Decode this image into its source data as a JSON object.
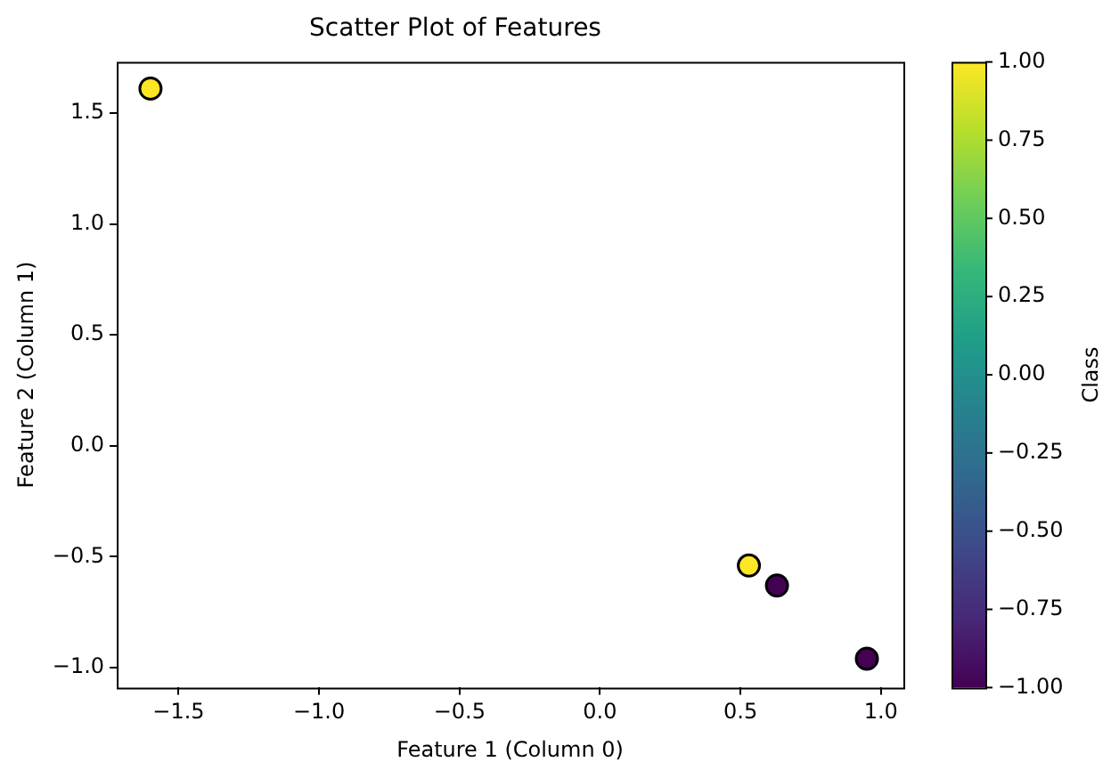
{
  "chart_data": {
    "type": "scatter",
    "title": "Scatter Plot of Features",
    "xlabel": "Feature 1 (Column 0)",
    "ylabel": "Feature 2 (Column 1)",
    "clabel": "Class",
    "x": [
      -1.6,
      0.53,
      0.63,
      0.95
    ],
    "values": [
      1.61,
      -0.54,
      -0.63,
      -0.96
    ],
    "cvalues": [
      1,
      1,
      -1,
      -1
    ],
    "xlim": [
      -1.72,
      1.08
    ],
    "xticks": [
      {
        "value": -1.5,
        "label": "−1.5"
      },
      {
        "value": -1.0,
        "label": "−1.0"
      },
      {
        "value": -0.5,
        "label": "−0.5"
      },
      {
        "value": 0.0,
        "label": "0.0"
      },
      {
        "value": 0.5,
        "label": "0.5"
      },
      {
        "value": 1.0,
        "label": "1.0"
      }
    ],
    "ylim": [
      -1.09,
      1.73
    ],
    "yticks": [
      {
        "value": -1.0,
        "label": "−1.0"
      },
      {
        "value": -0.5,
        "label": "−0.5"
      },
      {
        "value": 0.0,
        "label": "0.0"
      },
      {
        "value": 0.5,
        "label": "0.5"
      },
      {
        "value": 1.0,
        "label": "1.0"
      },
      {
        "value": 1.5,
        "label": "1.5"
      }
    ],
    "clim": [
      -1,
      1
    ],
    "cticks": [
      {
        "value": -1,
        "label": "−1.00"
      },
      {
        "value": -0.75,
        "label": "−0.75"
      },
      {
        "value": -0.5,
        "label": "−0.50"
      },
      {
        "value": -0.25,
        "label": "−0.25"
      },
      {
        "value": 0,
        "label": "0.00"
      },
      {
        "value": 0.25,
        "label": "0.25"
      },
      {
        "value": 0.5,
        "label": "0.50"
      },
      {
        "value": 0.75,
        "label": "0.75"
      },
      {
        "value": 1,
        "label": "1.00"
      }
    ],
    "grid": false,
    "legend": false,
    "marker": "circle"
  }
}
